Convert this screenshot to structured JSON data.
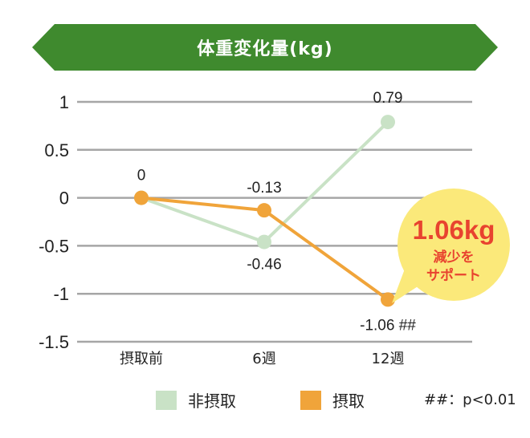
{
  "title": "体重変化量(kg)",
  "callout": {
    "value": "1.06kg",
    "line1": "減少を",
    "line2": "サポート"
  },
  "note": "##：p<0.01",
  "colors": {
    "banner": "#3f8a2e",
    "banner_dark": "#2f6b22",
    "non_intake": "#c9e2c6",
    "intake": "#f0a43a",
    "callout_bg": "#fbe97a",
    "callout_text": "#e8432f",
    "grid": "#a6a6a6"
  },
  "chart_data": {
    "type": "line",
    "categories": [
      "摂取前",
      "6週",
      "12週"
    ],
    "ylim": [
      -1.5,
      1
    ],
    "yticks": [
      1,
      0.5,
      0,
      -0.5,
      -1,
      -1.5
    ],
    "ytick_labels": [
      "1",
      "0.5",
      "0",
      "-0.5",
      "-1",
      "-1.5"
    ],
    "grid": true,
    "series": [
      {
        "name": "非摂取",
        "values": [
          0,
          -0.46,
          0.79
        ],
        "labels": [
          "",
          "-0.46",
          "0.79"
        ]
      },
      {
        "name": "摂取",
        "values": [
          0,
          -0.13,
          -1.06
        ],
        "labels": [
          "0",
          "-0.13",
          "-1.06 ##"
        ]
      }
    ]
  }
}
